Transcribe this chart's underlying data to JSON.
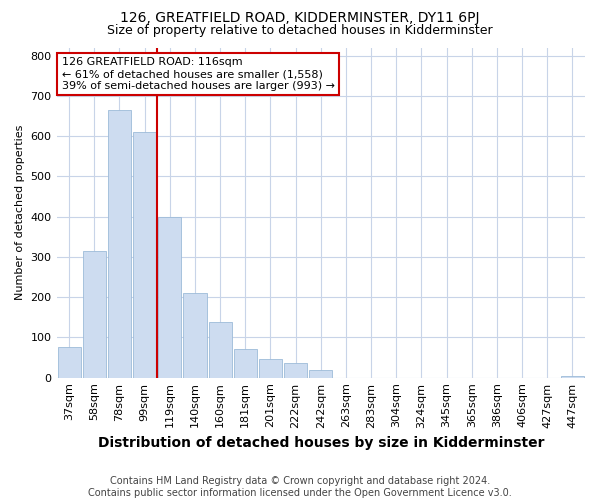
{
  "title": "126, GREATFIELD ROAD, KIDDERMINSTER, DY11 6PJ",
  "subtitle": "Size of property relative to detached houses in Kidderminster",
  "xlabel": "Distribution of detached houses by size in Kidderminster",
  "ylabel": "Number of detached properties",
  "footer_line1": "Contains HM Land Registry data © Crown copyright and database right 2024.",
  "footer_line2": "Contains public sector information licensed under the Open Government Licence v3.0.",
  "annotation_line1": "126 GREATFIELD ROAD: 116sqm",
  "annotation_line2": "← 61% of detached houses are smaller (1,558)",
  "annotation_line3": "39% of semi-detached houses are larger (993) →",
  "bar_labels": [
    "37sqm",
    "58sqm",
    "78sqm",
    "99sqm",
    "119sqm",
    "140sqm",
    "160sqm",
    "181sqm",
    "201sqm",
    "222sqm",
    "242sqm",
    "263sqm",
    "283sqm",
    "304sqm",
    "324sqm",
    "345sqm",
    "365sqm",
    "386sqm",
    "406sqm",
    "427sqm",
    "447sqm"
  ],
  "bar_values": [
    75,
    315,
    665,
    610,
    400,
    210,
    138,
    70,
    47,
    37,
    20,
    0,
    0,
    0,
    0,
    0,
    0,
    0,
    0,
    0,
    5
  ],
  "bar_color": "#cddcf0",
  "bar_edge_color": "#9dbbd8",
  "vline_color": "#cc0000",
  "annotation_box_color": "#ffffff",
  "annotation_box_edge": "#cc0000",
  "ylim": [
    0,
    820
  ],
  "yticks": [
    0,
    100,
    200,
    300,
    400,
    500,
    600,
    700,
    800
  ],
  "grid_color": "#c8d4e8",
  "background_color": "#ffffff",
  "title_fontsize": 10,
  "subtitle_fontsize": 9,
  "xlabel_fontsize": 10,
  "ylabel_fontsize": 8,
  "tick_fontsize": 8,
  "annotation_fontsize": 8,
  "footer_fontsize": 7
}
